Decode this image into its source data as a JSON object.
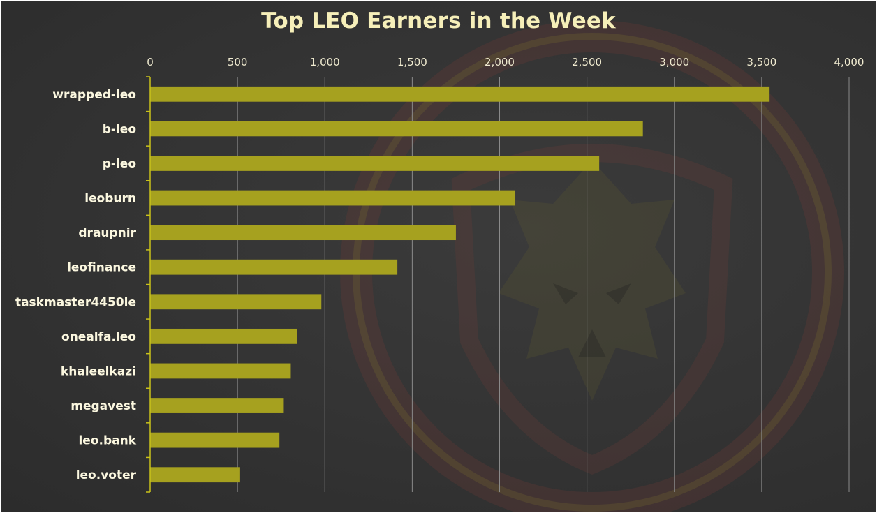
{
  "chart_data": {
    "type": "bar",
    "orientation": "horizontal",
    "title": "Top LEO Earners in the Week",
    "xlabel": "",
    "ylabel": "",
    "xlim": [
      0,
      4000
    ],
    "x_ticks": [
      0,
      500,
      1000,
      1500,
      2000,
      2500,
      3000,
      3500,
      4000
    ],
    "x_tick_labels": [
      "0",
      "500",
      "1,000",
      "1,500",
      "2,000",
      "2,500",
      "3,000",
      "3,500",
      "4,000"
    ],
    "x_axis_position": "top",
    "grid": true,
    "categories": [
      "wrapped-leo",
      "b-leo",
      "p-leo",
      "leoburn",
      "draupnir",
      "leofinance",
      "taskmaster4450le",
      "onealfa.leo",
      "khaleelkazi",
      "megavest",
      "leo.bank",
      "leo.voter"
    ],
    "values": [
      3545,
      2820,
      2570,
      2090,
      1750,
      1415,
      980,
      840,
      805,
      765,
      740,
      515
    ],
    "colors": {
      "bar": "#a6a11f",
      "background": "#333333",
      "grid": "#8a8a8a",
      "axis": "#c9c21a",
      "title": "#f6efb9",
      "label": "#fbf7df"
    }
  }
}
